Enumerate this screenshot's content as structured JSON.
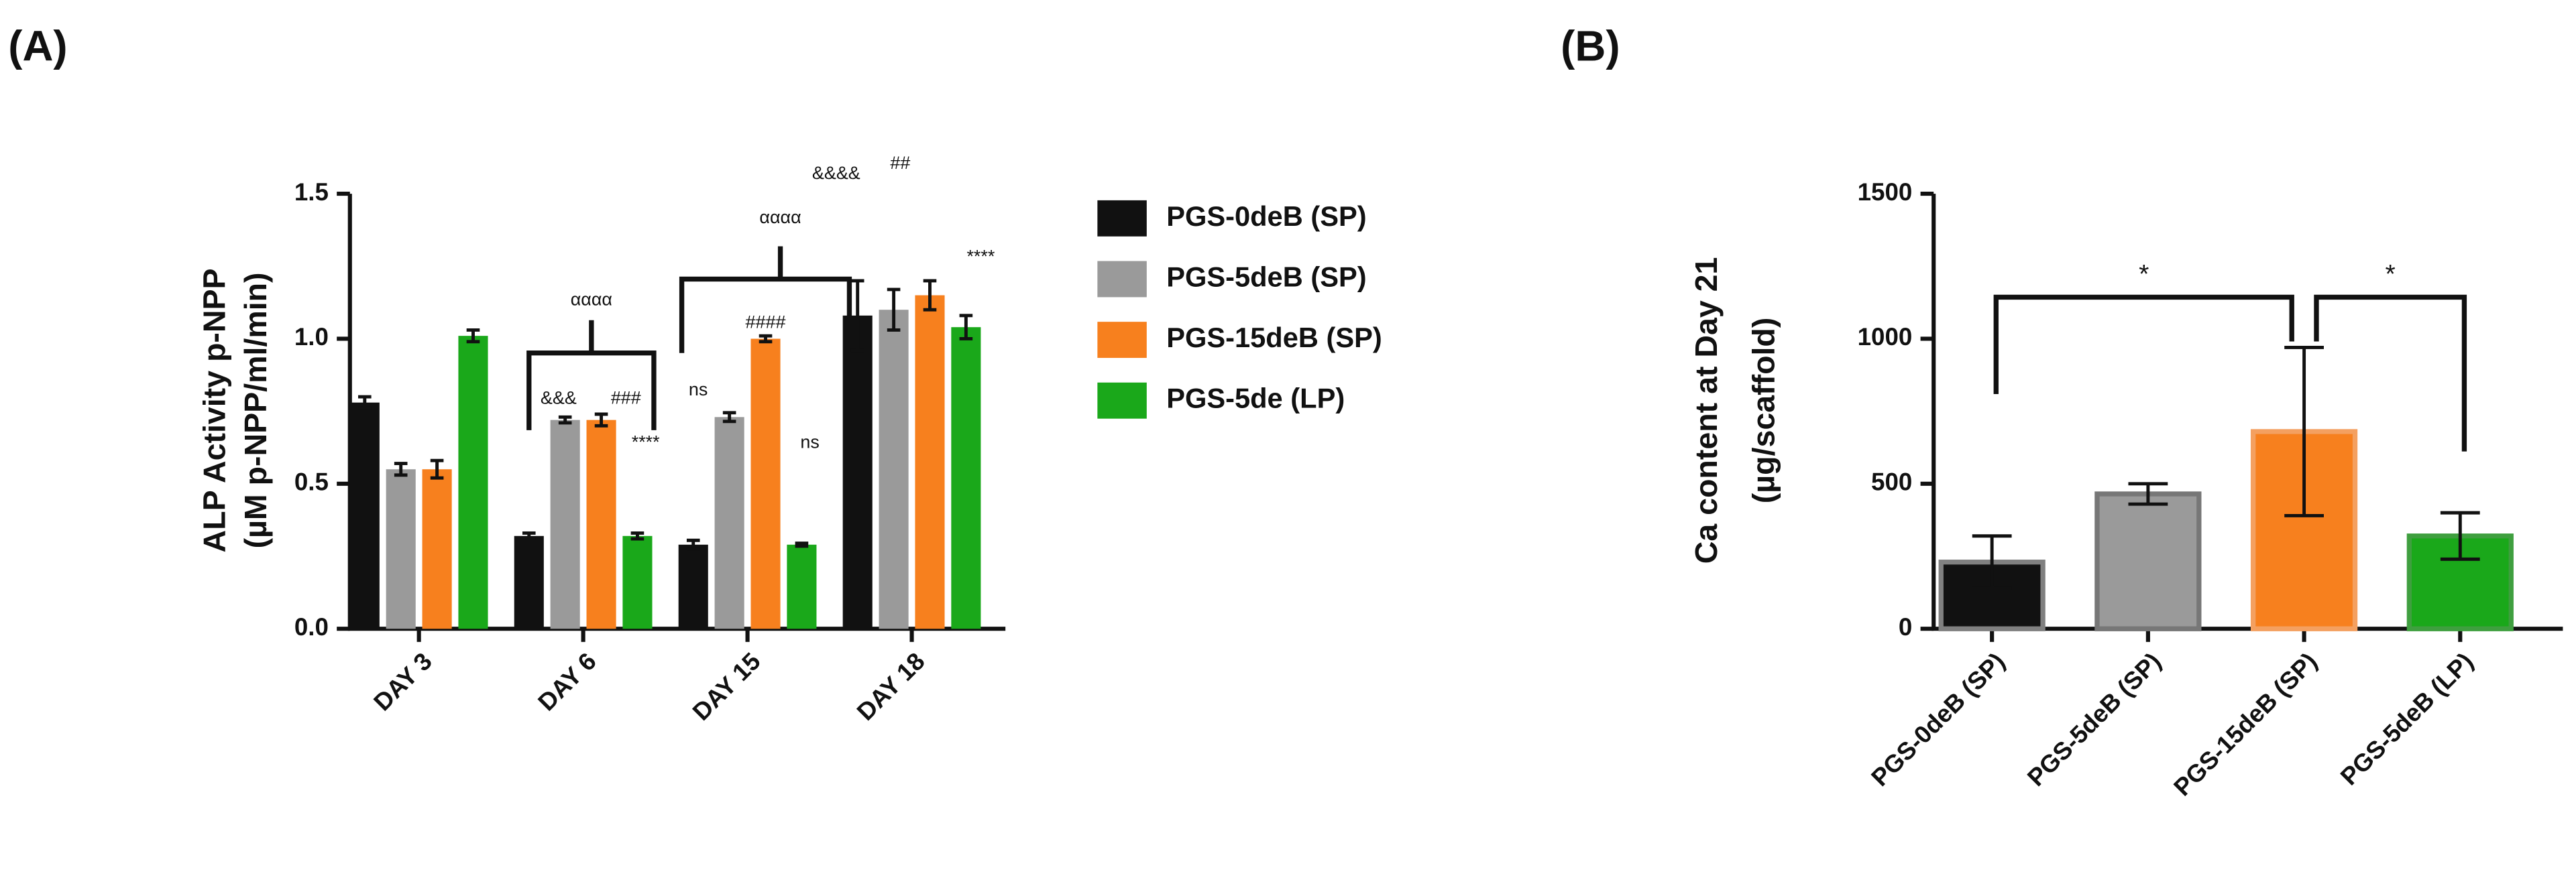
{
  "chart_data": [
    {
      "type": "bar",
      "panel": "(A)",
      "ylabel": [
        "ALP Activity p-NPP",
        "(µM p-NPP/ml/min)"
      ],
      "categories": [
        "DAY 3",
        "DAY 6",
        "DAY 15",
        "DAY 18"
      ],
      "ylim": [
        0,
        1.5
      ],
      "yticks": [
        {
          "value": 0,
          "label": "0.0"
        },
        0.5,
        {
          "value": 1,
          "label": "1.0"
        },
        1.5
      ],
      "series": [
        {
          "name": "PGS-0deB (SP)",
          "color": "#111111",
          "values": [
            0.78,
            0.32,
            0.29,
            1.08
          ],
          "errors": [
            0.02,
            0.01,
            0.015,
            0.12
          ]
        },
        {
          "name": "PGS-5deB (SP)",
          "color": "#9a9a9a",
          "values": [
            0.55,
            0.72,
            0.73,
            1.1
          ],
          "errors": [
            0.02,
            0.01,
            0.015,
            0.07
          ]
        },
        {
          "name": "PGS-15deB (SP)",
          "color": "#f7801e",
          "values": [
            0.55,
            0.72,
            1.0,
            1.15
          ],
          "errors": [
            0.03,
            0.02,
            0.01,
            0.05
          ]
        },
        {
          "name": "PGS-5de (LP)",
          "color": "#1aa81a",
          "values": [
            1.01,
            0.32,
            0.29,
            1.04
          ],
          "errors": [
            0.02,
            0.01,
            0.005,
            0.04
          ]
        }
      ],
      "annotations": [
        "αααα",
        "&&&",
        "###",
        "****",
        "αααα",
        "ns",
        "####",
        "ns",
        "&&&&",
        "##",
        "****"
      ]
    },
    {
      "type": "bar",
      "panel": "(B)",
      "ylabel": [
        "Ca content at Day 21",
        "(µg/scaffold)"
      ],
      "categories": [
        "PGS-0deB (SP)",
        "PGS-5deB (SP)",
        "PGS-15deB (SP)",
        "PGS-5deB (LP)"
      ],
      "ylim": [
        0,
        1500
      ],
      "yticks": [
        0,
        500,
        1000,
        1500
      ],
      "colors": [
        "#111111",
        "#9a9a9a",
        "#f7801e",
        "#1aa81a"
      ],
      "edge_colors": [
        "#808080",
        "#777777",
        "#f4a060",
        "#3f9f3f"
      ],
      "values": [
        230,
        465,
        680,
        320
      ],
      "errors": [
        90,
        35,
        290,
        80
      ],
      "annotations": [
        "*",
        "*"
      ]
    }
  ]
}
